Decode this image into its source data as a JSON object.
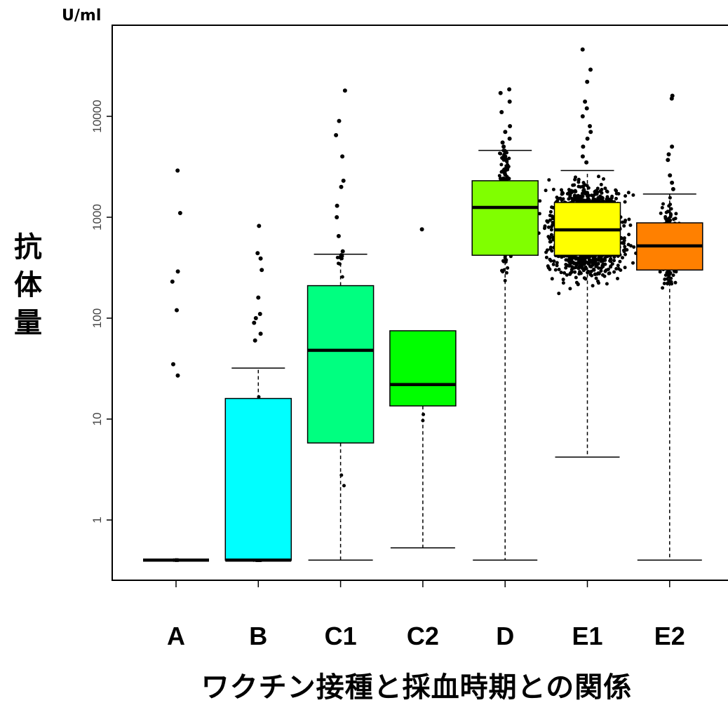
{
  "chart_data": {
    "type": "box",
    "unit": "U/ml",
    "ylabel": [
      "抗",
      "体",
      "量"
    ],
    "xlabel": "ワクチン接種と採血時期との関係",
    "yscale": "log",
    "ylim": [
      0.3,
      80000
    ],
    "yticks": [
      1,
      10,
      100,
      1000,
      10000
    ],
    "ytick_labels": [
      "1",
      "10",
      "100",
      "1000",
      "10000"
    ],
    "categories": [
      "A",
      "B",
      "C1",
      "C2",
      "D",
      "E1",
      "E2"
    ],
    "boxes": [
      {
        "name": "A",
        "color": "#ffffff",
        "q1": 0.4,
        "median": 0.4,
        "q3": 0.4,
        "whisker_low": 0.4,
        "whisker_high": 0.4,
        "outliers": [
          2900,
          1100,
          290,
          230,
          120,
          35,
          27
        ]
      },
      {
        "name": "B",
        "color": "#00ffff",
        "q1": 0.4,
        "median": 0.4,
        "q3": 16,
        "whisker_low": 0.4,
        "whisker_high": 32,
        "outliers": [
          820,
          440,
          390,
          300,
          160,
          110,
          100,
          90,
          70,
          60
        ]
      },
      {
        "name": "C1",
        "color": "#00ff80",
        "q1": 5.8,
        "median": 48,
        "q3": 210,
        "whisker_low": 0.4,
        "whisker_high": 430,
        "outliers": [
          18000,
          9000,
          6500,
          4000,
          2300,
          2000,
          1300,
          1000,
          650,
          460
        ]
      },
      {
        "name": "C2",
        "color": "#00ff00",
        "q1": 13.5,
        "median": 22,
        "q3": 75,
        "whisker_low": 0.53,
        "whisker_high": 75,
        "outliers": [
          760
        ]
      },
      {
        "name": "D",
        "color": "#80ff00",
        "q1": 420,
        "median": 1250,
        "q3": 2300,
        "whisker_low": 0.4,
        "whisker_high": 4600,
        "outliers": [
          18500,
          17000,
          14000,
          11000,
          8000,
          7000,
          6000,
          5500,
          5000
        ]
      },
      {
        "name": "E1",
        "color": "#ffff00",
        "q1": 420,
        "median": 750,
        "q3": 1400,
        "whisker_low": 4.2,
        "whisker_high": 2900,
        "outliers": [
          46000,
          29000,
          22000,
          14000,
          12000,
          10000,
          8000,
          7000,
          6000,
          5000,
          4000,
          3500
        ]
      },
      {
        "name": "E2",
        "color": "#ff8000",
        "q1": 300,
        "median": 520,
        "q3": 880,
        "whisker_low": 0.4,
        "whisker_high": 1700,
        "outliers": [
          16000,
          15000,
          5000,
          4200,
          3700,
          2600,
          2200,
          1900
        ]
      }
    ]
  }
}
